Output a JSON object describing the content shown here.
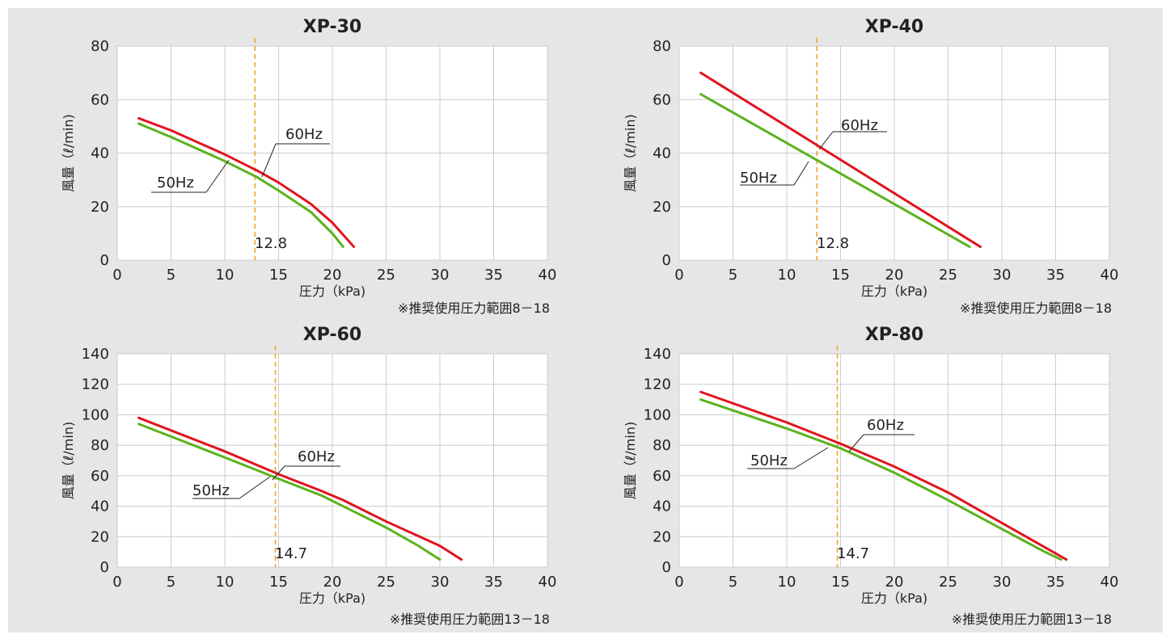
{
  "colors": {
    "series_60hz": "#e0141e",
    "series_50hz": "#5cb21e",
    "ref_line": "#f0a020",
    "grid": "#cccccc",
    "panel_background": "#e6e6e6",
    "plot_background": "#ffffff"
  },
  "chart_data": [
    {
      "type": "line",
      "title": "XP-30",
      "xlabel": "圧力（kPa)",
      "ylabel": "風量（ℓ/min)",
      "xlim": [
        0,
        40
      ],
      "ylim": [
        0,
        80
      ],
      "xticks": [
        "0",
        "5",
        "10",
        "15",
        "20",
        "25",
        "30",
        "35",
        "40"
      ],
      "yticks": [
        "0",
        "20",
        "40",
        "60",
        "80"
      ],
      "grid": true,
      "series": [
        {
          "name": "60Hz",
          "x": [
            2,
            5,
            10,
            13,
            15,
            18,
            20,
            22
          ],
          "y": [
            53,
            48.5,
            39.5,
            33.5,
            29,
            21,
            14,
            5
          ]
        },
        {
          "name": "50Hz",
          "x": [
            2,
            5,
            10,
            13,
            15,
            18,
            20,
            21
          ],
          "y": [
            51,
            46,
            37,
            31,
            26,
            18,
            10,
            5
          ]
        }
      ],
      "reference_line": {
        "x": 12.8,
        "label": "12.8"
      },
      "annotations": [
        "60Hz",
        "50Hz"
      ],
      "note": "※推奨使用圧力範囲8－18"
    },
    {
      "type": "line",
      "title": "XP-40",
      "xlabel": "圧力（kPa)",
      "ylabel": "風量（ℓ/min)",
      "xlim": [
        0,
        40
      ],
      "ylim": [
        0,
        80
      ],
      "xticks": [
        "0",
        "5",
        "10",
        "15",
        "20",
        "25",
        "30",
        "35",
        "40"
      ],
      "yticks": [
        "0",
        "20",
        "40",
        "60",
        "80"
      ],
      "grid": true,
      "series": [
        {
          "name": "60Hz",
          "x": [
            2,
            28
          ],
          "y": [
            70,
            5
          ]
        },
        {
          "name": "50Hz",
          "x": [
            2,
            27
          ],
          "y": [
            62,
            5
          ]
        }
      ],
      "reference_line": {
        "x": 12.8,
        "label": "12.8"
      },
      "annotations": [
        "60Hz",
        "50Hz"
      ],
      "note": "※推奨使用圧力範囲8－18"
    },
    {
      "type": "line",
      "title": "XP-60",
      "xlabel": "圧力（kPa)",
      "ylabel": "風量（ℓ/min)",
      "xlim": [
        0,
        40
      ],
      "ylim": [
        0,
        140
      ],
      "xticks": [
        "0",
        "5",
        "10",
        "15",
        "20",
        "25",
        "30",
        "35",
        "40"
      ],
      "yticks": [
        "0",
        "20",
        "40",
        "60",
        "80",
        "100",
        "120",
        "140"
      ],
      "grid": true,
      "series": [
        {
          "name": "60Hz",
          "x": [
            2,
            10,
            15,
            19,
            21,
            25,
            30,
            32
          ],
          "y": [
            98,
            76,
            61,
            50,
            44,
            30,
            14,
            5
          ]
        },
        {
          "name": "50Hz",
          "x": [
            2,
            10,
            15,
            19,
            21,
            25,
            28,
            30
          ],
          "y": [
            94,
            72,
            58,
            47,
            40,
            26,
            14,
            5
          ]
        }
      ],
      "reference_line": {
        "x": 14.7,
        "label": "14.7"
      },
      "annotations": [
        "60Hz",
        "50Hz"
      ],
      "note": "※推奨使用圧力範囲13－18"
    },
    {
      "type": "line",
      "title": "XP-80",
      "xlabel": "圧力（kPa)",
      "ylabel": "風量（ℓ/min)",
      "xlim": [
        0,
        40
      ],
      "ylim": [
        0,
        140
      ],
      "xticks": [
        "0",
        "5",
        "10",
        "15",
        "20",
        "25",
        "30",
        "35",
        "40"
      ],
      "yticks": [
        "0",
        "20",
        "40",
        "60",
        "80",
        "100",
        "120",
        "140"
      ],
      "grid": true,
      "series": [
        {
          "name": "60Hz",
          "x": [
            2,
            10,
            15,
            20,
            25,
            30,
            34,
            36
          ],
          "y": [
            115,
            95,
            81,
            66,
            49,
            29,
            13,
            5
          ]
        },
        {
          "name": "50Hz",
          "x": [
            2,
            10,
            15,
            20,
            25,
            30,
            34,
            35.5
          ],
          "y": [
            110,
            91,
            78,
            62,
            44,
            25,
            10,
            5
          ]
        }
      ],
      "reference_line": {
        "x": 14.7,
        "label": "14.7"
      },
      "annotations": [
        "60Hz",
        "50Hz"
      ],
      "note": "※推奨使用圧力範囲13－18"
    }
  ]
}
